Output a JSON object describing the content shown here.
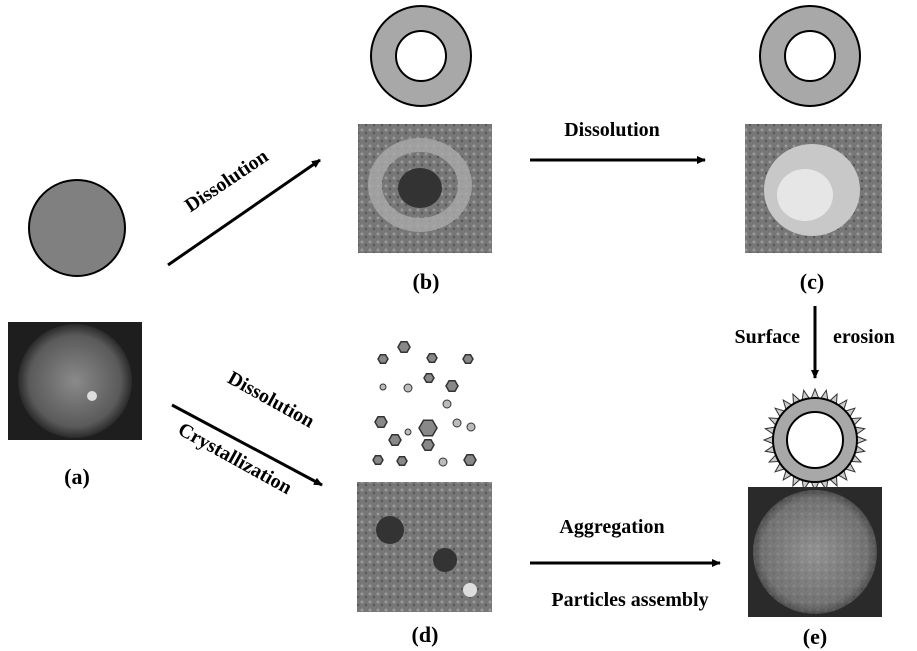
{
  "panels": {
    "a": "(a)",
    "b": "(b)",
    "c": "(c)",
    "d": "(d)",
    "e": "(e)"
  },
  "arrows": {
    "top_diagonal": "Dissolution",
    "top_horizontal": "Dissolution",
    "vertical": [
      "Surface",
      "erosion"
    ],
    "bottom_diagonal": [
      "Dissolution",
      "Crystallization"
    ],
    "bottom_horizontal": [
      "Aggregation",
      "Particles assembly"
    ]
  }
}
